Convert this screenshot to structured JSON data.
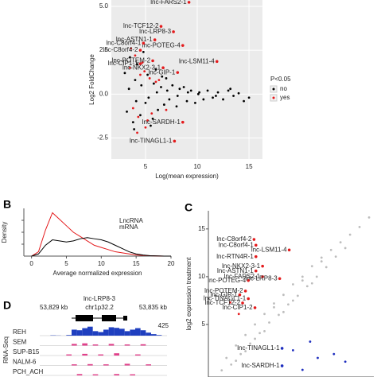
{
  "chart_data": [
    {
      "type": "scatter",
      "x_label": "Log(mean expression)",
      "y_label": "Log2 FoldChange",
      "xlim": [
        1.7,
        16.3
      ],
      "ylim": [
        -3.7,
        5.36
      ],
      "xticks": [
        5,
        10,
        15
      ],
      "yticks": [
        -2.5,
        {
          "value": 0,
          "label": "0.0"
        },
        2.5,
        {
          "value": 5,
          "label": "5.0"
        }
      ],
      "grid": true,
      "legend_title": "P<0.05",
      "legend": "right",
      "series": [
        {
          "name": "no",
          "color": "#000000",
          "x": [
            3,
            3.2,
            3.5,
            3.8,
            4,
            4.2,
            4.5,
            4.8,
            5,
            5.2,
            5.5,
            5.8,
            6,
            6.2,
            6.5,
            6.8,
            7,
            7.3,
            7.6,
            8,
            8.3,
            8.7,
            9,
            9.4,
            9.8,
            10.2,
            10.6,
            11,
            11.5,
            12,
            12.5,
            13,
            13.5,
            14,
            14.5,
            15,
            3.4,
            4.1,
            4.6,
            5.3,
            6.1,
            7.1,
            8.1,
            9.1,
            10.1,
            3.9,
            5.7,
            6.6,
            11.8,
            13.2
          ],
          "values": [
            1.2,
            -1.0,
            2.1,
            -1.6,
            0.8,
            1.7,
            -1.2,
            2.4,
            -0.5,
            1.1,
            -1.8,
            0.6,
            1.4,
            -0.9,
            0.4,
            -0.6,
            0.9,
            -0.3,
            0.5,
            -0.7,
            0.3,
            0.4,
            -0.4,
            0.2,
            -0.5,
            0.1,
            -0.3,
            0.2,
            -0.2,
            0.1,
            -0.3,
            0.2,
            -0.1,
            0.05,
            -0.4,
            -0.2,
            0.3,
            -0.4,
            0.5,
            -0.2,
            0.1,
            0.2,
            -0.1,
            0.1,
            0.0,
            -2.0,
            -1.4,
            1.0,
            -0.1,
            0.3
          ]
        },
        {
          "name": "yes",
          "color": "#e41a1c",
          "x": [
            3.5,
            4,
            4.3,
            4.7,
            5,
            5.4,
            3.8,
            4.5,
            5.2,
            6,
            3.6,
            4.2,
            4.9,
            5.6,
            6.3,
            7
          ],
          "values": [
            1.5,
            2.2,
            -1.3,
            1.8,
            -1.9,
            0.9,
            -0.8,
            1.1,
            -1.5,
            0.7,
            2.6,
            -2.2,
            1.3,
            -1.1,
            0.8,
            -0.9
          ]
        }
      ],
      "annotations": [
        {
          "text": "lnc-FARS2-1",
          "x": 9.2,
          "y": 5.23,
          "color": "#e41a1c"
        },
        {
          "text": "lnc-TCF12-2",
          "x": 6.5,
          "y": 3.86,
          "color": "#e41a1c"
        },
        {
          "text": "lnc-LRP8-3",
          "x": 7.7,
          "y": 3.55,
          "color": "#e41a1c"
        },
        {
          "text": "lnc-ASTN1-1",
          "x": 5.9,
          "y": 3.09,
          "color": "#e41a1c"
        },
        {
          "text": "lnc-POTEG-4",
          "x": 8.6,
          "y": 2.77,
          "color": "#e41a1c"
        },
        {
          "text": "lnc-C8orf4-1",
          "x": 4.8,
          "y": 2.9,
          "color": "#e41a1c"
        },
        {
          "text": "lnc-C8orf4-2",
          "x": 4.5,
          "y": 2.5,
          "color": "#e41a1c"
        },
        {
          "text": "lnc-POTEM-2",
          "x": 5.7,
          "y": 1.9,
          "color": "#e41a1c"
        },
        {
          "text": "lnc-LSM11-4",
          "x": 11.9,
          "y": 1.86,
          "color": "#e41a1c"
        },
        {
          "text": "lnc-CIP1-1",
          "x": 4.5,
          "y": 1.73,
          "color": "#e41a1c"
        },
        {
          "text": "lnc-NKX2-3-1",
          "x": 6.7,
          "y": 1.5,
          "color": "#e41a1c"
        },
        {
          "text": "lnc-GIP-1",
          "x": 8.1,
          "y": 1.23,
          "color": "#e41a1c"
        },
        {
          "text": "lnc-SARDH-1",
          "x": 8.6,
          "y": -1.6,
          "color": "#e41a1c"
        },
        {
          "text": "lnc-TINAGL1-1",
          "x": 7.8,
          "y": -2.68,
          "color": "#e41a1c"
        }
      ]
    },
    {
      "type": "line",
      "panel": "B",
      "x_label": "Average normalized expression",
      "y_label": "Density",
      "xlim": [
        -1.1,
        20
      ],
      "ylim": [
        0,
        0.22
      ],
      "xticks": [
        0,
        5,
        10,
        15,
        20
      ],
      "x": [
        0,
        1,
        2,
        3,
        4,
        5,
        6,
        7,
        8,
        9,
        10,
        11,
        12,
        13,
        14,
        15,
        16,
        17,
        18,
        19,
        20
      ],
      "series": [
        {
          "name": "LncRNA",
          "color": "#e41a1c",
          "values": [
            0,
            0.02,
            0.12,
            0.2,
            0.17,
            0.14,
            0.11,
            0.09,
            0.07,
            0.05,
            0.04,
            0.03,
            0.02,
            0.015,
            0.01,
            0.005,
            0.003,
            0.002,
            0.001,
            0,
            0
          ]
        },
        {
          "name": "mRNA",
          "color": "#000000",
          "values": [
            0,
            0.01,
            0.05,
            0.075,
            0.07,
            0.065,
            0.07,
            0.08,
            0.085,
            0.08,
            0.075,
            0.065,
            0.05,
            0.035,
            0.02,
            0.01,
            0.005,
            0.002,
            0.001,
            0,
            0
          ]
        }
      ]
    },
    {
      "type": "scatter",
      "panel": "C",
      "y_label": "log2 expression treatment",
      "xlim": [
        -0.9,
        16.5
      ],
      "ylim": [
        -0.5,
        16.9
      ],
      "yticks": [
        5,
        10,
        15
      ],
      "series": [
        {
          "color": "#bdbdbd",
          "x": [
            0.5,
            1,
            1.5,
            2,
            2.5,
            3,
            3.5,
            4,
            4.5,
            5,
            5.5,
            6,
            6.5,
            7,
            7.5,
            8,
            8.5,
            9,
            9.5,
            10,
            10.5,
            11,
            11.5,
            12,
            12.5,
            13,
            13.5,
            14,
            15,
            16,
            2,
            3,
            4,
            5,
            6,
            7,
            8,
            9,
            10,
            11
          ],
          "values": [
            0.2,
            1.5,
            0.8,
            2.8,
            1.9,
            3.9,
            3.0,
            5.0,
            4.1,
            6.1,
            5.2,
            7.2,
            6.0,
            8.1,
            7.1,
            9.2,
            8.0,
            10.0,
            9.0,
            11.1,
            10.0,
            12.0,
            11.0,
            12.8,
            12.1,
            13.6,
            13.0,
            14.4,
            15.2,
            16.2,
            1.2,
            2.2,
            3.5,
            4.3,
            6.8,
            6.3,
            7.5,
            9.6,
            9.3,
            11.6
          ]
        },
        {
          "color": "#e41a1c",
          "x": [
            1.4,
            2.3
          ],
          "values": [
            7.3,
            6.1
          ]
        },
        {
          "color": "#1f2fbf",
          "x": [
            9.8,
            12.3,
            13.5,
            10.6,
            9,
            8
          ],
          "values": [
            3.2,
            1.9,
            1.1,
            1.5,
            0.25,
            2.3
          ]
        }
      ],
      "annotations": [
        {
          "text": "lnc-C8orf4-2",
          "x": 3.9,
          "y": 13.9,
          "color": "#e41a1c"
        },
        {
          "text": "lnc-C8orf4-1",
          "x": 4.1,
          "y": 13.3,
          "color": "#e41a1c"
        },
        {
          "text": "lnc-LSM11-4",
          "x": 7.6,
          "y": 12.8,
          "color": "#e41a1c"
        },
        {
          "text": "lnc-RTN4R-1",
          "x": 4.1,
          "y": 12.1,
          "color": "#e41a1c"
        },
        {
          "text": "lnc-NKX2-3-1",
          "x": 4.8,
          "y": 11.1,
          "color": "#e41a1c"
        },
        {
          "text": "lnc-ASTN1-1",
          "x": 4.1,
          "y": 10.6,
          "color": "#e41a1c"
        },
        {
          "text": "lnc-FARS2-1",
          "x": 4.8,
          "y": 10.0,
          "color": "#e41a1c"
        },
        {
          "text": "lnc-POTEG-4",
          "x": 3.3,
          "y": 9.6,
          "color": "#e41a1c"
        },
        {
          "text": "lnc-LRP8-3",
          "x": 6.6,
          "y": 9.8,
          "color": "#e41a1c"
        },
        {
          "text": "lnc-POTEM-2",
          "x": 3.0,
          "y": 8.5,
          "color": "#e41a1c"
        },
        {
          "text": "lnc-GIP-1",
          "x": 2.4,
          "y": 8.1,
          "color": "#e41a1c"
        },
        {
          "text": "lnc-TINAGL1-1",
          "x": 3.3,
          "y": 7.7,
          "color": "#e41a1c"
        },
        {
          "text": "lnc-TCF12-2",
          "x": 2.7,
          "y": 7.25,
          "color": "#e41a1c"
        },
        {
          "text": "lnc-CIP1-2",
          "x": 4.0,
          "y": 6.75,
          "color": "#e41a1c"
        },
        {
          "text": "lnc-TINAGL1-1",
          "x": 6.85,
          "y": 2.5,
          "color": "#1f2fbf"
        },
        {
          "text": "lnc-SARDH-1",
          "x": 6.85,
          "y": 0.67,
          "color": "#1f2fbf"
        }
      ]
    },
    {
      "type": "genome_tracks",
      "panel": "D",
      "title": "lnc-LRP8-3",
      "start_label": "53,829 kb",
      "region": "chr1p32.2",
      "end_label": "53,835 kb",
      "assay": "RNA-Seq",
      "ylim": [
        0,
        425
      ],
      "tracks": [
        {
          "name": "REH",
          "color": "#1f3fbf",
          "values": [
            0,
            0,
            10,
            5,
            0,
            20,
            200,
            180,
            250,
            300,
            150,
            120,
            200,
            280,
            260,
            230,
            150,
            200,
            250,
            180,
            100,
            50,
            20,
            0
          ]
        },
        {
          "name": "SEM",
          "color": "#e0408a",
          "values": [
            0,
            0,
            0,
            0,
            0,
            0,
            15,
            0,
            20,
            0,
            10,
            0,
            0,
            15,
            0,
            0,
            10,
            0,
            0,
            12,
            0,
            0,
            0,
            0
          ]
        },
        {
          "name": "SUP-B15",
          "color": "#e0408a",
          "values": [
            0,
            0,
            0,
            0,
            0,
            10,
            0,
            0,
            15,
            0,
            0,
            10,
            0,
            0,
            20,
            0,
            0,
            0,
            10,
            0,
            0,
            0,
            0,
            0
          ]
        },
        {
          "name": "NALM-6",
          "color": "#e0408a",
          "values": [
            0,
            0,
            0,
            0,
            0,
            0,
            10,
            0,
            0,
            12,
            0,
            0,
            10,
            0,
            0,
            0,
            15,
            0,
            0,
            0,
            10,
            0,
            0,
            0
          ]
        },
        {
          "name": "PCH_ACH",
          "color": "#e0408a",
          "values": [
            0,
            0,
            0,
            0,
            0,
            0,
            0,
            12,
            0,
            0,
            10,
            0,
            0,
            0,
            12,
            0,
            0,
            10,
            0,
            0,
            0,
            0,
            0,
            0
          ]
        }
      ]
    }
  ]
}
